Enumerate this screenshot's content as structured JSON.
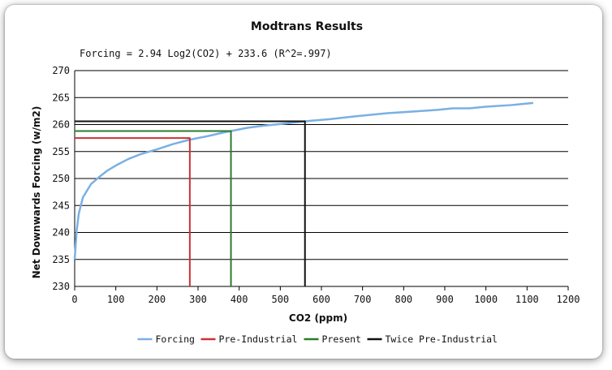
{
  "chart_data": {
    "type": "line",
    "title": "Modtrans Results",
    "annotation": "Forcing = 2.94 Log2(CO2) + 233.6 (R^2=.997)",
    "xlabel": "CO2 (ppm)",
    "ylabel": "Net Downwards Forcing (w/m2)",
    "xlim": [
      0,
      1200
    ],
    "ylim": [
      230,
      270
    ],
    "xticks": [
      0,
      100,
      200,
      300,
      400,
      500,
      600,
      700,
      800,
      900,
      1000,
      1100,
      1200
    ],
    "yticks": [
      230,
      235,
      240,
      245,
      250,
      255,
      260,
      265,
      270
    ],
    "grid": "horizontal",
    "legend_position": "bottom",
    "series": [
      {
        "name": "Forcing",
        "color": "#7ab0e3",
        "x": [
          0,
          5,
          10,
          20,
          40,
          60,
          80,
          100,
          130,
          160,
          200,
          240,
          280,
          320,
          360,
          380,
          420,
          460,
          500,
          560,
          620,
          680,
          760,
          840,
          880,
          920,
          960,
          1000,
          1060,
          1115
        ],
        "y": [
          235.0,
          240.5,
          243.5,
          246.5,
          249.0,
          250.3,
          251.5,
          252.4,
          253.6,
          254.5,
          255.4,
          256.4,
          257.2,
          257.8,
          258.5,
          258.8,
          259.4,
          259.8,
          260.1,
          260.6,
          261.0,
          261.5,
          262.1,
          262.5,
          262.7,
          263.0,
          263.0,
          263.3,
          263.6,
          264.0
        ]
      },
      {
        "name": "Pre-Industrial",
        "color": "#cc3333",
        "x": [
          0,
          280,
          280
        ],
        "y": [
          257.5,
          257.5,
          230
        ]
      },
      {
        "name": "Present",
        "color": "#2d7a2d",
        "x": [
          0,
          380,
          380
        ],
        "y": [
          258.8,
          258.8,
          230
        ]
      },
      {
        "name": "Twice Pre-Industrial",
        "color": "#111111",
        "x": [
          0,
          560,
          560
        ],
        "y": [
          260.6,
          260.6,
          230
        ]
      }
    ]
  }
}
